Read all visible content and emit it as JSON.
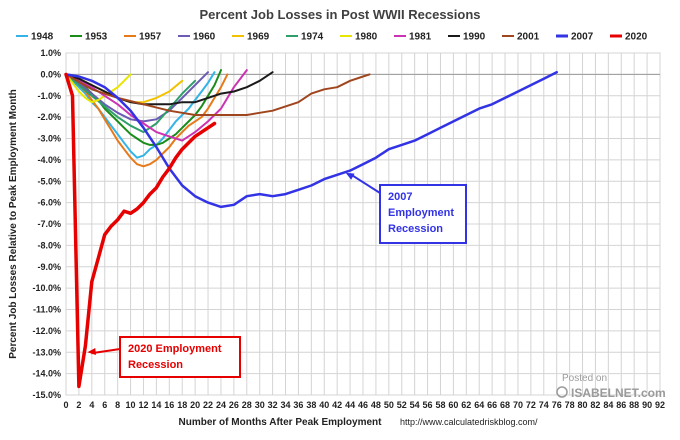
{
  "chart_data": {
    "type": "line",
    "title": "Percent Job Losses in Post WWII Recessions",
    "xlabel": "Number of Months After Peak Employment",
    "ylabel": "Percent Job Losses Relative to Peak Employment Month",
    "source_note": "http://www.calculatedriskblog.com/",
    "watermark_posted_on": "Posted on",
    "watermark_site": "ISABELNET.com",
    "xlim": [
      0,
      92
    ],
    "ylim": [
      -15,
      1
    ],
    "x_ticks": [
      "0",
      "2",
      "4",
      "6",
      "8",
      "10",
      "12",
      "14",
      "16",
      "18",
      "20",
      "22",
      "24",
      "26",
      "28",
      "30",
      "32",
      "34",
      "36",
      "38",
      "40",
      "42",
      "44",
      "46",
      "48",
      "50",
      "52",
      "54",
      "56",
      "58",
      "60",
      "62",
      "64",
      "66",
      "68",
      "70",
      "72",
      "74",
      "76",
      "78",
      "80",
      "82",
      "84",
      "86",
      "88",
      "90",
      "92"
    ],
    "y_ticks": [
      "1.0%",
      "0.0%",
      "-1.0%",
      "-2.0%",
      "-3.0%",
      "-4.0%",
      "-5.0%",
      "-6.0%",
      "-7.0%",
      "-8.0%",
      "-9.0%",
      "-10.0%",
      "-11.0%",
      "-12.0%",
      "-13.0%",
      "-14.0%",
      "-15.0%"
    ],
    "grid": true,
    "legend_position": "top",
    "annotations": [
      {
        "label_lines": [
          "2007",
          "Employment",
          "Recession"
        ],
        "color": "#3333e6",
        "points_to": {
          "x": 43,
          "y": -4.6
        }
      },
      {
        "label_lines": [
          "2020 Employment",
          "Recession"
        ],
        "color": "#e60000",
        "points_to": {
          "x": 3,
          "y": -13.0
        }
      }
    ],
    "series": [
      {
        "name": "1948",
        "color": "#33b3e6",
        "x": [
          0,
          1,
          2,
          3,
          4,
          5,
          6,
          7,
          8,
          9,
          10,
          11,
          12,
          13,
          14,
          15,
          16,
          17,
          18,
          19,
          20,
          21,
          22,
          23
        ],
        "values": [
          0,
          -0.3,
          -0.6,
          -0.9,
          -1.3,
          -1.6,
          -2.0,
          -2.4,
          -2.8,
          -3.2,
          -3.6,
          -3.9,
          -3.8,
          -3.5,
          -3.3,
          -3.0,
          -2.6,
          -2.2,
          -1.9,
          -1.6,
          -1.2,
          -0.8,
          -0.4,
          0.1
        ]
      },
      {
        "name": "1953",
        "color": "#1a8c1a",
        "x": [
          0,
          1,
          2,
          3,
          4,
          5,
          6,
          7,
          8,
          9,
          10,
          11,
          12,
          13,
          14,
          15,
          16,
          17,
          18,
          19,
          20,
          21,
          22,
          23,
          24
        ],
        "values": [
          0,
          -0.1,
          -0.3,
          -0.6,
          -0.9,
          -1.2,
          -1.6,
          -1.9,
          -2.2,
          -2.5,
          -2.8,
          -3.0,
          -3.2,
          -3.3,
          -3.3,
          -3.2,
          -3.0,
          -2.8,
          -2.5,
          -2.2,
          -1.9,
          -1.5,
          -1.0,
          -0.5,
          0.2
        ]
      },
      {
        "name": "1957",
        "color": "#e67a1a",
        "x": [
          0,
          1,
          2,
          3,
          4,
          5,
          6,
          7,
          8,
          9,
          10,
          11,
          12,
          13,
          14,
          15,
          16,
          17,
          18,
          19,
          20,
          21,
          22,
          23,
          24,
          25
        ],
        "values": [
          0,
          -0.2,
          -0.5,
          -0.8,
          -1.2,
          -1.6,
          -2.1,
          -2.6,
          -3.1,
          -3.5,
          -3.9,
          -4.2,
          -4.3,
          -4.2,
          -4.0,
          -3.7,
          -3.4,
          -3.0,
          -2.7,
          -2.4,
          -2.2,
          -2.0,
          -1.6,
          -1.1,
          -0.6,
          0.0
        ]
      },
      {
        "name": "1960",
        "color": "#6b5bb3",
        "x": [
          0,
          2,
          4,
          6,
          8,
          10,
          12,
          14,
          16,
          18,
          20,
          22
        ],
        "values": [
          0,
          -0.4,
          -0.9,
          -1.4,
          -1.8,
          -2.1,
          -2.2,
          -2.1,
          -1.7,
          -1.1,
          -0.5,
          0.1
        ]
      },
      {
        "name": "1969",
        "color": "#f2c200",
        "x": [
          0,
          2,
          4,
          6,
          8,
          10,
          12,
          14,
          16,
          18
        ],
        "values": [
          0,
          -0.2,
          -0.5,
          -0.8,
          -1.1,
          -1.3,
          -1.3,
          -1.1,
          -0.8,
          -0.3
        ]
      },
      {
        "name": "1974",
        "color": "#2e9e6b",
        "x": [
          0,
          2,
          4,
          6,
          8,
          10,
          12,
          14,
          16,
          18,
          20
        ],
        "values": [
          0,
          -0.5,
          -1.0,
          -1.5,
          -2.0,
          -2.4,
          -2.7,
          -2.3,
          -1.6,
          -0.9,
          -0.3
        ]
      },
      {
        "name": "1980",
        "color": "#e6e600",
        "x": [
          0,
          1,
          2,
          3,
          4,
          5,
          6,
          7,
          8,
          9,
          10
        ],
        "values": [
          0,
          -0.4,
          -0.8,
          -1.1,
          -1.3,
          -1.2,
          -1.0,
          -0.8,
          -0.6,
          -0.3,
          0.0
        ]
      },
      {
        "name": "1981",
        "color": "#cc33b3",
        "x": [
          0,
          2,
          4,
          6,
          8,
          10,
          12,
          14,
          16,
          18,
          20,
          22,
          24,
          26,
          28
        ],
        "values": [
          0,
          -0.3,
          -0.6,
          -1.0,
          -1.4,
          -1.9,
          -2.3,
          -2.7,
          -2.9,
          -3.1,
          -2.7,
          -2.2,
          -1.6,
          -0.6,
          0.2
        ]
      },
      {
        "name": "1990",
        "color": "#1a1a1a",
        "x": [
          0,
          2,
          4,
          6,
          8,
          10,
          12,
          14,
          16,
          18,
          20,
          22,
          24,
          26,
          28,
          30,
          32
        ],
        "values": [
          0,
          -0.2,
          -0.5,
          -0.8,
          -1.1,
          -1.3,
          -1.4,
          -1.4,
          -1.4,
          -1.3,
          -1.3,
          -1.1,
          -0.9,
          -0.8,
          -0.6,
          -0.3,
          0.1
        ]
      },
      {
        "name": "2001",
        "color": "#a0461e",
        "x": [
          0,
          4,
          8,
          12,
          16,
          20,
          24,
          28,
          30,
          32,
          34,
          36,
          38,
          40,
          42,
          44,
          46,
          47
        ],
        "values": [
          0,
          -0.7,
          -1.1,
          -1.4,
          -1.7,
          -1.9,
          -1.9,
          -1.9,
          -1.8,
          -1.7,
          -1.5,
          -1.3,
          -0.9,
          -0.7,
          -0.6,
          -0.3,
          -0.1,
          0.0
        ]
      },
      {
        "name": "2007",
        "color": "#3333e6",
        "x": [
          0,
          2,
          4,
          6,
          8,
          10,
          12,
          14,
          16,
          18,
          20,
          22,
          24,
          26,
          28,
          30,
          32,
          34,
          36,
          38,
          40,
          42,
          44,
          46,
          48,
          50,
          52,
          54,
          56,
          58,
          60,
          62,
          64,
          66,
          68,
          70,
          72,
          74,
          76
        ],
        "values": [
          0,
          -0.1,
          -0.3,
          -0.6,
          -1.1,
          -1.7,
          -2.5,
          -3.4,
          -4.4,
          -5.2,
          -5.7,
          -6.0,
          -6.2,
          -6.1,
          -5.7,
          -5.6,
          -5.7,
          -5.6,
          -5.4,
          -5.2,
          -4.9,
          -4.7,
          -4.5,
          -4.2,
          -3.9,
          -3.5,
          -3.3,
          -3.1,
          -2.8,
          -2.5,
          -2.2,
          -1.9,
          -1.6,
          -1.4,
          -1.1,
          -0.8,
          -0.5,
          -0.2,
          0.1
        ]
      },
      {
        "name": "2020",
        "color": "#e60000",
        "x": [
          0,
          1,
          2,
          3,
          4,
          5,
          6,
          7,
          8,
          9,
          10,
          11,
          12,
          13,
          14,
          15,
          16,
          17,
          18,
          19,
          20,
          21,
          22,
          23
        ],
        "values": [
          0,
          -1.0,
          -14.6,
          -12.7,
          -9.7,
          -8.6,
          -7.5,
          -7.1,
          -6.8,
          -6.4,
          -6.5,
          -6.3,
          -6.0,
          -5.6,
          -5.3,
          -4.8,
          -4.4,
          -3.9,
          -3.5,
          -3.2,
          -2.9,
          -2.7,
          -2.5,
          -2.3
        ]
      }
    ]
  }
}
